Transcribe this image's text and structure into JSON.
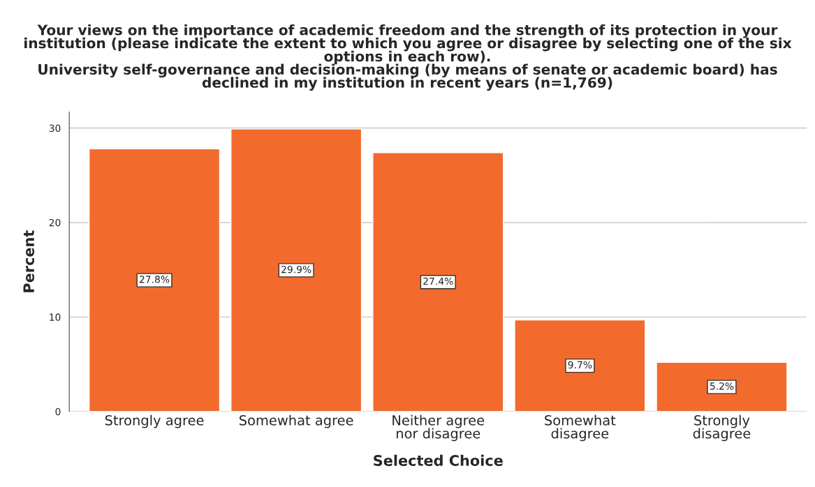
{
  "chart_data": {
    "type": "bar",
    "title": "Your views on the importance of academic freedom and the strength of its protection in your\ninstitution (please indicate the extent to which you agree or disagree by selecting one of the six\noptions in each row).\nUniversity self-governance and decision-making (by means of senate or academic board) has\ndeclined in my institution in recent years (n=1,769)",
    "xlabel": "Selected Choice",
    "ylabel": "Percent",
    "categories": [
      "Strongly agree",
      "Somewhat agree",
      "Neither agree\nnor disagree",
      "Somewhat\ndisagree",
      "Strongly\ndisagree"
    ],
    "values": [
      27.8,
      29.9,
      27.4,
      9.7,
      5.2
    ],
    "value_labels": [
      "27.8%",
      "29.9%",
      "27.4%",
      "9.7%",
      "5.2%"
    ],
    "color": "#f26b2d",
    "ylim": [
      0,
      31.7
    ],
    "yticks": [
      0,
      10,
      20,
      30
    ],
    "grid": "y"
  }
}
